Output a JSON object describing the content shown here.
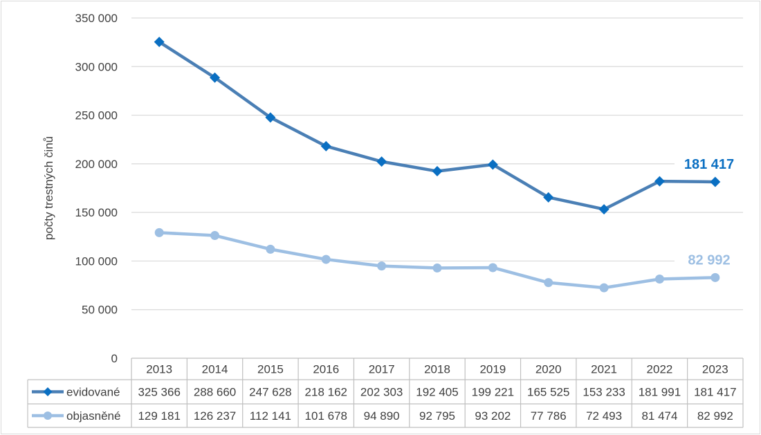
{
  "chart_data": {
    "type": "line",
    "ylabel": "počty trestných činů",
    "ylim": [
      0,
      350000
    ],
    "yticks": [
      0,
      50000,
      100000,
      150000,
      200000,
      250000,
      300000,
      350000
    ],
    "ytick_labels": [
      "0",
      "50 000",
      "100 000",
      "150 000",
      "200 000",
      "250 000",
      "300 000",
      "350 000"
    ],
    "categories": [
      "2013",
      "2014",
      "2015",
      "2016",
      "2017",
      "2018",
      "2019",
      "2020",
      "2021",
      "2022",
      "2023"
    ],
    "grid": true,
    "legend": "data-table",
    "series": [
      {
        "name": "evidované",
        "color": "#4a7fb5",
        "marker_color": "#0a6fc2",
        "marker": "diamond",
        "values": [
          325366,
          288660,
          247628,
          218162,
          202303,
          192405,
          199221,
          165525,
          153233,
          181991,
          181417
        ],
        "value_labels": [
          "325 366",
          "288 660",
          "247 628",
          "218 162",
          "202 303",
          "192 405",
          "199 221",
          "165 525",
          "153 233",
          "181 991",
          "181 417"
        ],
        "end_label": "181 417",
        "end_label_color": "#0a6fc2"
      },
      {
        "name": "objasněné",
        "color": "#9dbfe3",
        "marker_color": "#9dbfe3",
        "marker": "circle",
        "values": [
          129181,
          126237,
          112141,
          101678,
          94890,
          92795,
          93202,
          77786,
          72493,
          81474,
          82992
        ],
        "value_labels": [
          "129 181",
          "126 237",
          "112 141",
          "101 678",
          "94 890",
          "92 795",
          "93 202",
          "77 786",
          "72 493",
          "81 474",
          "82 992"
        ],
        "end_label": "82 992",
        "end_label_color": "#9dbfe3"
      }
    ]
  }
}
